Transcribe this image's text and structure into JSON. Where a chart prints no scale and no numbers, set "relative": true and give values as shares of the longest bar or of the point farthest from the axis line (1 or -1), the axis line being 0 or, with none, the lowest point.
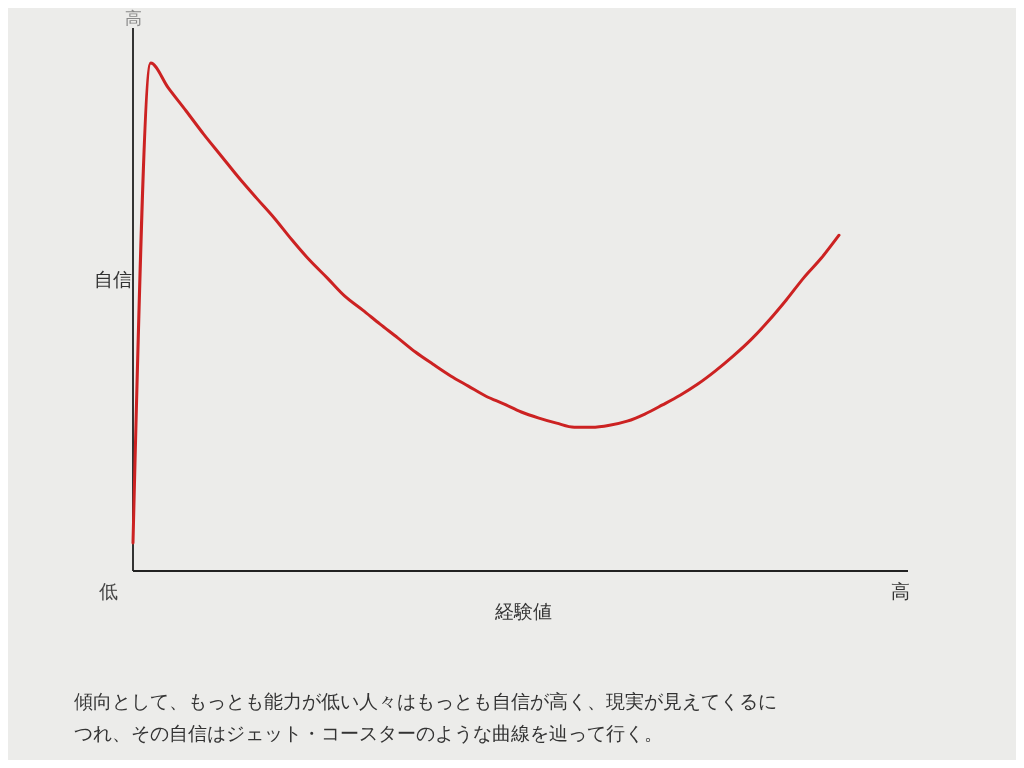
{
  "chart_data": {
    "type": "line",
    "relative": true,
    "xlabel": "経験値",
    "ylabel": "自信",
    "categories": [
      null,
      null,
      null,
      null,
      null,
      null,
      null,
      null,
      null,
      null,
      null,
      null,
      null,
      null,
      null,
      null,
      null,
      null,
      null,
      null,
      null,
      null,
      null,
      null,
      null,
      null,
      null,
      null,
      null,
      null,
      null,
      null,
      null,
      null,
      null,
      null,
      null,
      null,
      null,
      null,
      null
    ],
    "series": [
      {
        "color": "#cc2222",
        "values": [
          0.055,
          1.0,
          0.951,
          0.906,
          0.86,
          0.817,
          0.774,
          0.734,
          0.695,
          0.652,
          0.612,
          0.577,
          0.541,
          0.514,
          0.486,
          0.459,
          0.431,
          0.407,
          0.384,
          0.364,
          0.344,
          0.329,
          0.313,
          0.301,
          0.291,
          0.283,
          0.283,
          0.287,
          0.295,
          0.309,
          0.327,
          0.346,
          0.368,
          0.394,
          0.423,
          0.455,
          0.492,
          0.533,
          0.577,
          0.616,
          0.661
        ]
      }
    ],
    "annotations": [
      "低",
      "高",
      "高",
      "傾向として、もっとも能力が低い人々はもっとも自信が高く、現実が見えてくるにつれ、その自信はジェット・コースターのような曲線を辿って行く。"
    ],
    "marker": "none",
    "line_style": "solid"
  }
}
